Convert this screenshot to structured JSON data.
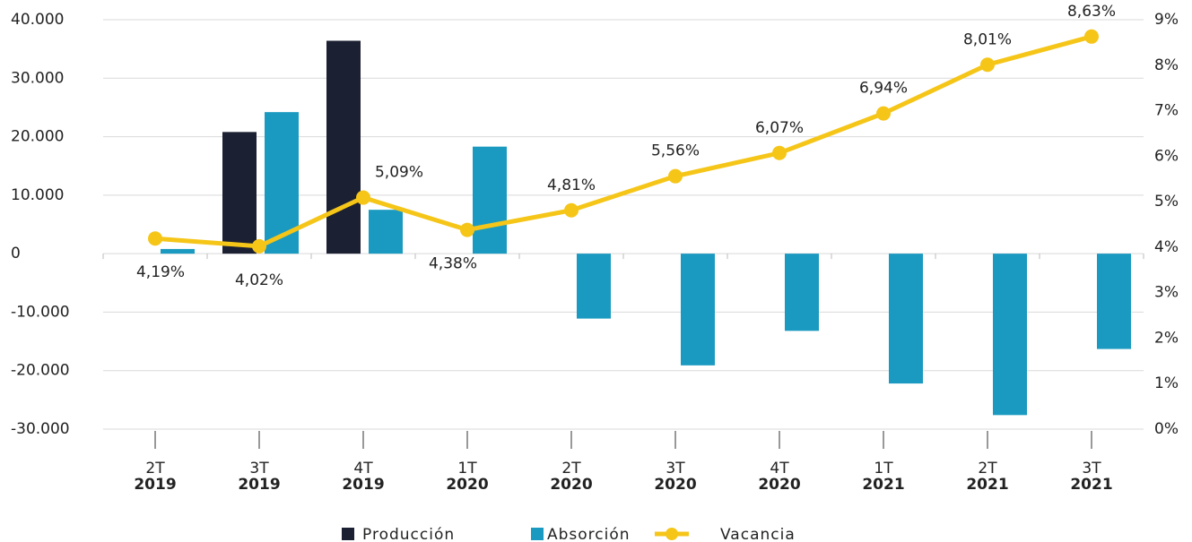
{
  "chart_data": {
    "type": "bar-line",
    "categories": [
      [
        "2T",
        "2019"
      ],
      [
        "3T",
        "2019"
      ],
      [
        "4T",
        "2019"
      ],
      [
        "1T",
        "2020"
      ],
      [
        "2T",
        "2020"
      ],
      [
        "3T",
        "2020"
      ],
      [
        "4T",
        "2020"
      ],
      [
        "1T",
        "2021"
      ],
      [
        "2T",
        "2021"
      ],
      [
        "3T",
        "2021"
      ]
    ],
    "series": [
      {
        "name": "Producción",
        "color": "#1b2033",
        "type": "bar",
        "values": [
          null,
          20800,
          36400,
          null,
          null,
          null,
          null,
          null,
          null,
          null
        ]
      },
      {
        "name": "Absorción",
        "color": "#1a9ac0",
        "type": "bar",
        "values": [
          800,
          24200,
          7500,
          18300,
          -11100,
          -19100,
          -13200,
          -22200,
          -27600,
          -16300
        ]
      },
      {
        "name": "Vacancia",
        "color": "#f5c518",
        "type": "line",
        "axis": "y2",
        "values": [
          4.19,
          4.02,
          5.09,
          4.38,
          4.81,
          5.56,
          6.07,
          6.94,
          8.01,
          8.63
        ],
        "value_labels": [
          "4,19%",
          "4,02%",
          "5,09%",
          "4,38%",
          "4,81%",
          "5,56%",
          "6,07%",
          "6,94%",
          "8,01%",
          "8,63%"
        ]
      }
    ],
    "ylim": [
      -30000,
      40000
    ],
    "yticks": [
      {
        "value": -30000,
        "label": "-30.000"
      },
      {
        "value": -20000,
        "label": "-20.000"
      },
      {
        "value": -10000,
        "label": "-10.000"
      },
      0,
      {
        "value": 10000,
        "label": "10.000"
      },
      {
        "value": 20000,
        "label": "20.000"
      },
      {
        "value": 30000,
        "label": "30.000"
      },
      {
        "value": 40000,
        "label": "40.000"
      }
    ],
    "y2lim": [
      0,
      9
    ],
    "y2ticks": [
      {
        "value": 0,
        "label": "0%"
      },
      {
        "value": 1,
        "label": "1%"
      },
      {
        "value": 2,
        "label": "2%"
      },
      {
        "value": 3,
        "label": "3%"
      },
      {
        "value": 4,
        "label": "4%"
      },
      {
        "value": 5,
        "label": "5%"
      },
      {
        "value": 6,
        "label": "6%"
      },
      {
        "value": 7,
        "label": "7%"
      },
      {
        "value": 8,
        "label": "8%"
      },
      {
        "value": 9,
        "label": "9%"
      }
    ],
    "grid": true
  }
}
